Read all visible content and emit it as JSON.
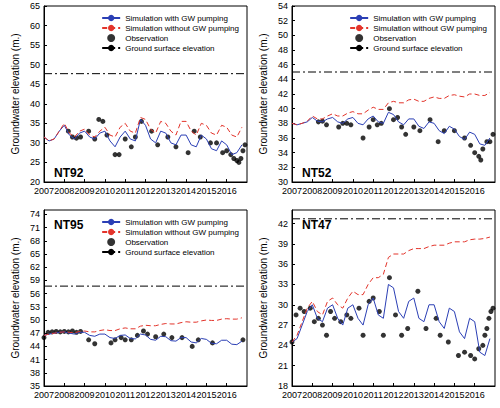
{
  "chart_data": [
    {
      "type": "line",
      "title": "NT92",
      "y_label": "Groundwater elevation (m.)",
      "x": [
        2007,
        2007.25,
        2007.5,
        2007.75,
        2008,
        2008.25,
        2008.5,
        2008.75,
        2009,
        2009.25,
        2009.5,
        2009.75,
        2010,
        2010.25,
        2010.5,
        2010.75,
        2011,
        2011.25,
        2011.5,
        2011.75,
        2012,
        2012.25,
        2012.5,
        2012.75,
        2013,
        2013.25,
        2013.5,
        2013.75,
        2014,
        2014.25,
        2014.5,
        2014.75,
        2015,
        2015.25,
        2015.5,
        2015.75,
        2016,
        2016.25,
        2016.5,
        2016.75
      ],
      "xlim": [
        2007,
        2017
      ],
      "xticks": [
        2007,
        2008,
        2009,
        2010,
        2011,
        2012,
        2013,
        2014,
        2015,
        2016
      ],
      "ylim": [
        20,
        65
      ],
      "yticks": [
        20,
        25,
        30,
        35,
        40,
        45,
        50,
        55,
        60,
        65
      ],
      "grid": false,
      "legend": "top-right",
      "series": [
        {
          "name": "Simulation with GW pumping",
          "type": "line",
          "color": "#2b3fb5",
          "line_style": "solid",
          "values": [
            31.5,
            30.5,
            31,
            33,
            34.5,
            32,
            31,
            32.5,
            33,
            31.5,
            31,
            32.5,
            33,
            30.5,
            29,
            31.5,
            33,
            31,
            30.5,
            36,
            34.5,
            31,
            30,
            33,
            32.5,
            30,
            29.5,
            32,
            32,
            29.5,
            29,
            32,
            31,
            28.5,
            28,
            30.5,
            29.5,
            27,
            27.5,
            29.5
          ]
        },
        {
          "name": "Simulation without GW pumping",
          "type": "line",
          "color": "#e3342b",
          "line_style": "dashed",
          "values": [
            31.5,
            30.5,
            31,
            33,
            35,
            32.5,
            31.5,
            33,
            33.5,
            32,
            31.5,
            33,
            34,
            32,
            31.5,
            34,
            35,
            33,
            32.5,
            36.5,
            36,
            33.5,
            32.5,
            35.5,
            35,
            33,
            32,
            35.5,
            35.5,
            33,
            32,
            35,
            34.5,
            32.5,
            32,
            34.5,
            34,
            32,
            31.5,
            34
          ]
        },
        {
          "name": "Observation",
          "type": "scatter",
          "color": "#000000",
          "marker": "circle",
          "x": [
            2008.2,
            2008.4,
            2008.6,
            2008.8,
            2009.2,
            2009.5,
            2009.7,
            2009.9,
            2010.1,
            2010.5,
            2010.7,
            2011.0,
            2011.3,
            2011.5,
            2011.8,
            2012.3,
            2012.6,
            2013.1,
            2013.5,
            2014.1,
            2014.4,
            2014.7,
            2015.2,
            2015.5,
            2015.8,
            2016.0,
            2016.2,
            2016.35,
            2016.5,
            2016.6,
            2016.7,
            2016.8,
            2016.9
          ],
          "values": [
            33,
            31.5,
            31.2,
            31.5,
            33,
            31,
            36,
            35.5,
            32,
            27,
            27,
            31,
            29,
            31.5,
            35.5,
            33,
            29.5,
            31.5,
            29,
            27.5,
            33,
            31.5,
            30,
            30,
            27.5,
            28,
            27,
            26,
            25.5,
            25,
            26,
            28,
            29.5
          ]
        },
        {
          "name": "Ground surface elevation",
          "type": "line",
          "color": "#000000",
          "line_style": "dashdot",
          "x": [
            2007,
            2017
          ],
          "values": [
            47.7,
            47.7
          ]
        }
      ]
    },
    {
      "type": "line",
      "title": "NT52",
      "y_label": "Groundwater elevation (m.)",
      "x": [
        2007,
        2007.25,
        2007.5,
        2007.75,
        2008,
        2008.25,
        2008.5,
        2008.75,
        2009,
        2009.25,
        2009.5,
        2009.75,
        2010,
        2010.25,
        2010.5,
        2010.75,
        2011,
        2011.25,
        2011.5,
        2011.75,
        2012,
        2012.25,
        2012.5,
        2012.75,
        2013,
        2013.25,
        2013.5,
        2013.75,
        2014,
        2014.25,
        2014.5,
        2014.75,
        2015,
        2015.25,
        2015.5,
        2015.75,
        2016,
        2016.25,
        2016.5,
        2016.75
      ],
      "xlim": [
        2007,
        2017
      ],
      "xticks": [
        2007,
        2008,
        2009,
        2010,
        2011,
        2012,
        2013,
        2014,
        2015,
        2016
      ],
      "ylim": [
        30,
        54
      ],
      "yticks": [
        30,
        32,
        34,
        36,
        38,
        40,
        42,
        44,
        46,
        48,
        50,
        52,
        54
      ],
      "grid": false,
      "legend": "top-right",
      "series": [
        {
          "name": "Simulation with GW pumping",
          "type": "line",
          "color": "#2b3fb5",
          "line_style": "solid",
          "values": [
            38,
            37.8,
            38,
            38.2,
            38.8,
            38.3,
            38.2,
            38.6,
            38.8,
            38.2,
            38,
            38.6,
            38.8,
            38,
            37.8,
            38.6,
            39,
            38.2,
            38,
            39.5,
            39.2,
            38.2,
            37.8,
            38.6,
            38.6,
            37.6,
            37.3,
            38.2,
            38,
            37,
            36.6,
            37.6,
            37.2,
            36.2,
            35.8,
            36.8,
            36.5,
            35.2,
            35,
            36
          ]
        },
        {
          "name": "Simulation without GW pumping",
          "type": "line",
          "color": "#e3342b",
          "line_style": "dashed",
          "values": [
            38,
            37.8,
            38,
            38.3,
            39,
            38.6,
            38.6,
            39,
            39.3,
            39,
            39,
            39.4,
            39.6,
            39.3,
            39.3,
            39.8,
            40.2,
            39.9,
            39.9,
            40.8,
            41,
            40.8,
            40.8,
            41.2,
            41.3,
            41,
            41,
            41.4,
            41.6,
            41.4,
            41.4,
            41.8,
            41.9,
            41.7,
            41.6,
            42,
            42,
            41.8,
            41.8,
            42.2
          ]
        },
        {
          "name": "Observation",
          "type": "scatter",
          "color": "#000000",
          "marker": "circle",
          "x": [
            2008.3,
            2008.5,
            2008.7,
            2009.3,
            2009.5,
            2009.7,
            2009.9,
            2010.5,
            2010.8,
            2011.0,
            2011.2,
            2011.4,
            2011.8,
            2012.0,
            2012.2,
            2012.4,
            2012.6,
            2013.0,
            2013.3,
            2013.8,
            2014.2,
            2014.5,
            2015.0,
            2015.5,
            2015.8,
            2016.0,
            2016.2,
            2016.3,
            2016.4,
            2016.6,
            2016.75,
            2016.9
          ],
          "values": [
            38.2,
            38.3,
            37.8,
            37.5,
            38,
            38,
            37.8,
            36,
            37.5,
            38.5,
            37.8,
            38,
            40,
            38.5,
            38.8,
            37.5,
            36.5,
            37.5,
            37,
            38.5,
            35.5,
            37,
            37,
            36,
            35,
            34,
            33.5,
            33,
            34.5,
            35.5,
            35.5,
            36.5
          ]
        },
        {
          "name": "Ground surface elevation",
          "type": "line",
          "color": "#000000",
          "line_style": "dashdot",
          "x": [
            2007,
            2017
          ],
          "values": [
            45,
            45
          ]
        }
      ]
    },
    {
      "type": "line",
      "title": "NT95",
      "y_label": "Groundwater elevation (m.)",
      "x": [
        2007,
        2007.25,
        2007.5,
        2007.75,
        2008,
        2008.25,
        2008.5,
        2008.75,
        2009,
        2009.25,
        2009.5,
        2009.75,
        2010,
        2010.25,
        2010.5,
        2010.75,
        2011,
        2011.25,
        2011.5,
        2011.75,
        2012,
        2012.25,
        2012.5,
        2012.75,
        2013,
        2013.25,
        2013.5,
        2013.75,
        2014,
        2014.25,
        2014.5,
        2014.75,
        2015,
        2015.25,
        2015.5,
        2015.75,
        2016,
        2016.25,
        2016.5,
        2016.75
      ],
      "xlim": [
        2007,
        2017
      ],
      "xticks": [
        2007,
        2008,
        2009,
        2010,
        2011,
        2012,
        2013,
        2014,
        2015,
        2016
      ],
      "ylim": [
        35,
        75
      ],
      "yticks": [
        35,
        38,
        41,
        44,
        47,
        50,
        53,
        56,
        59,
        62,
        65,
        68,
        71,
        74
      ],
      "grid": false,
      "legend": "top-right",
      "series": [
        {
          "name": "Simulation with GW pumping",
          "type": "line",
          "color": "#2b3fb5",
          "line_style": "solid",
          "values": [
            46.5,
            46.8,
            47,
            47.2,
            47.3,
            47,
            46.8,
            47.2,
            47.2,
            46.5,
            46.3,
            46.8,
            46.8,
            46,
            45.8,
            46.5,
            46.6,
            45.8,
            45.7,
            46.8,
            46.6,
            45.6,
            45.4,
            46.3,
            46.2,
            45.3,
            45.2,
            46,
            46,
            45,
            44.8,
            45.8,
            45.6,
            44.7,
            44.6,
            45.4,
            45.4,
            44.5,
            44.4,
            45.2
          ]
        },
        {
          "name": "Simulation without GW pumping",
          "type": "line",
          "color": "#e3342b",
          "line_style": "dashed",
          "values": [
            46.5,
            46.8,
            47,
            47.2,
            47.3,
            47.2,
            47.1,
            47.4,
            47.5,
            47.3,
            47.3,
            47.6,
            47.8,
            47.6,
            47.6,
            48,
            48.2,
            48,
            48,
            48.6,
            48.8,
            48.7,
            48.7,
            49,
            49.2,
            49.1,
            49.1,
            49.4,
            49.6,
            49.5,
            49.5,
            49.8,
            50,
            49.9,
            49.9,
            50.2,
            50.3,
            50.2,
            50.2,
            50.5
          ]
        },
        {
          "name": "Observation",
          "type": "scatter",
          "color": "#000000",
          "marker": "circle",
          "x": [
            2007.0,
            2007.2,
            2007.4,
            2007.6,
            2007.8,
            2008.0,
            2008.2,
            2008.4,
            2008.6,
            2008.8,
            2009.2,
            2009.5,
            2010.3,
            2010.5,
            2010.8,
            2011.0,
            2011.3,
            2011.6,
            2011.9,
            2012.1,
            2012.5,
            2012.9,
            2013.3,
            2013.8,
            2014.3,
            2014.6,
            2015.3,
            2016.8
          ],
          "values": [
            46,
            47.2,
            47.3,
            47.4,
            47.3,
            47.4,
            47.3,
            47.5,
            47.2,
            47.4,
            45.5,
            44.6,
            44.8,
            45.5,
            46,
            45.5,
            45.5,
            46.5,
            47.5,
            46.8,
            46.2,
            46.8,
            46,
            46,
            44,
            45.5,
            44.8,
            45.5
          ]
        },
        {
          "name": "Ground surface elevation",
          "type": "line",
          "color": "#000000",
          "line_style": "dashdot",
          "x": [
            2007,
            2017
          ],
          "values": [
            57.7,
            57.7
          ]
        }
      ]
    },
    {
      "type": "line",
      "title": "NT47",
      "y_label": "Groundwater elevation (m.)",
      "x": [
        2007,
        2007.25,
        2007.5,
        2007.75,
        2008,
        2008.25,
        2008.5,
        2008.75,
        2009,
        2009.25,
        2009.5,
        2009.75,
        2010,
        2010.25,
        2010.5,
        2010.75,
        2011,
        2011.25,
        2011.5,
        2011.75,
        2012,
        2012.25,
        2012.5,
        2012.75,
        2013,
        2013.25,
        2013.5,
        2013.75,
        2014,
        2014.25,
        2014.5,
        2014.75,
        2015,
        2015.25,
        2015.5,
        2015.75,
        2016,
        2016.25,
        2016.5,
        2016.75
      ],
      "xlim": [
        2007,
        2017
      ],
      "xticks": [
        2007,
        2008,
        2009,
        2010,
        2011,
        2012,
        2013,
        2014,
        2015,
        2016
      ],
      "ylim": [
        18,
        44
      ],
      "yticks": [
        18,
        21,
        24,
        27,
        30,
        33,
        36,
        39,
        42
      ],
      "grid": false,
      "series": [
        {
          "name": "Simulation with GW pumping",
          "type": "line",
          "color": "#2b3fb5",
          "line_style": "solid",
          "values": [
            24.5,
            25,
            27,
            29,
            30,
            28,
            27.5,
            29.5,
            30,
            28,
            27,
            29.5,
            30,
            28,
            27,
            30,
            31,
            28.5,
            28,
            33,
            32.5,
            29,
            28,
            30.5,
            31,
            28,
            27.5,
            30,
            30,
            27.5,
            26.5,
            29.5,
            29,
            26,
            25,
            28,
            27.5,
            23,
            22.5,
            25
          ]
        },
        {
          "name": "Simulation without GW pumping",
          "type": "line",
          "color": "#e3342b",
          "line_style": "dashed",
          "values": [
            24.5,
            25.5,
            27.5,
            29.5,
            30.5,
            29,
            28.5,
            30.5,
            31,
            30,
            29.5,
            31,
            32,
            31.5,
            31.5,
            33,
            34,
            34,
            34.5,
            37,
            37.5,
            37.5,
            37.5,
            38,
            38.3,
            38.3,
            38.3,
            38.6,
            38.8,
            38.8,
            38.8,
            39.1,
            39.3,
            39.3,
            39.3,
            39.6,
            39.7,
            39.7,
            39.8,
            40
          ]
        },
        {
          "name": "Observation",
          "type": "scatter",
          "color": "#000000",
          "marker": "circle",
          "x": [
            2007.0,
            2007.2,
            2007.4,
            2007.6,
            2007.9,
            2008.1,
            2008.3,
            2008.5,
            2008.7,
            2008.9,
            2009.1,
            2009.4,
            2009.7,
            2009.9,
            2010.3,
            2010.5,
            2010.8,
            2011.0,
            2011.3,
            2011.5,
            2011.8,
            2012.1,
            2012.4,
            2012.7,
            2013.2,
            2013.6,
            2014.1,
            2014.3,
            2014.7,
            2015.2,
            2015.5,
            2015.8,
            2016.0,
            2016.2,
            2016.4,
            2016.5,
            2016.6,
            2016.7,
            2016.8,
            2016.9
          ],
          "values": [
            24.5,
            28.5,
            29.5,
            29,
            29.5,
            27.5,
            28,
            27,
            25.5,
            29,
            28,
            27.5,
            28.5,
            28,
            29.5,
            25.5,
            30.5,
            31,
            29,
            25.5,
            34,
            28.5,
            25.5,
            26.5,
            32,
            26.5,
            28,
            25.5,
            24.5,
            22.5,
            23,
            22.5,
            22,
            23.5,
            24,
            25.5,
            26.5,
            28,
            29,
            29.5
          ]
        },
        {
          "name": "Ground surface elevation",
          "type": "line",
          "color": "#000000",
          "line_style": "dashdot",
          "x": [
            2007,
            2017
          ],
          "values": [
            42.7,
            42.7
          ]
        }
      ]
    }
  ]
}
